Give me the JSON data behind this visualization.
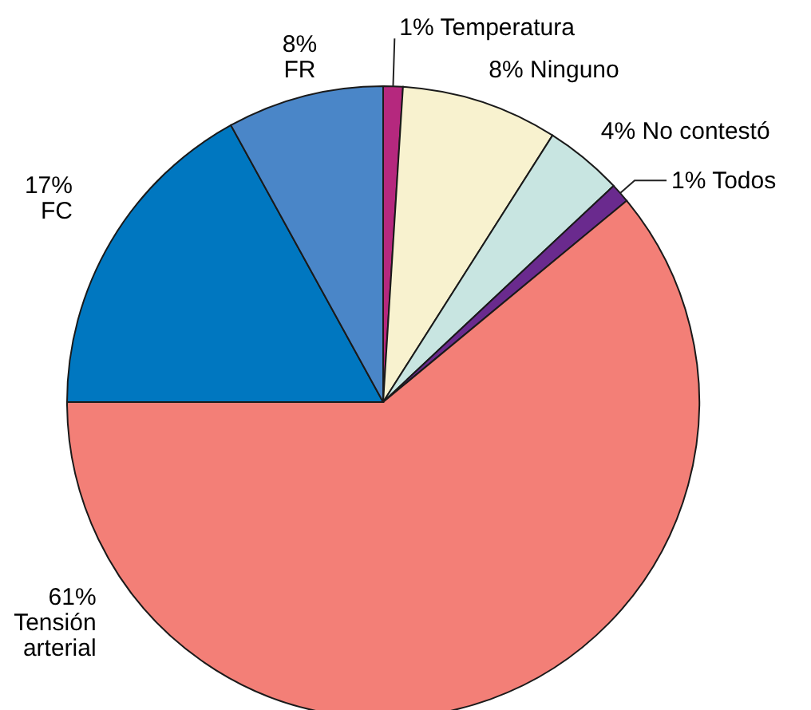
{
  "chart_data": {
    "type": "pie",
    "categories": [
      "Temperatura",
      "Ninguno",
      "No contestó",
      "Todos",
      "Tensión arterial",
      "FC",
      "FR"
    ],
    "values": [
      1,
      8,
      4,
      1,
      61,
      17,
      8
    ],
    "value_labels": [
      "1%",
      "8%",
      "4%",
      "1%",
      "61%",
      "17%",
      "8%"
    ],
    "colors": [
      "#b5287e",
      "#f8f2cf",
      "#c8e5e1",
      "#6a2a8e",
      "#f37f77",
      "#0077c0",
      "#4a86c8"
    ]
  }
}
